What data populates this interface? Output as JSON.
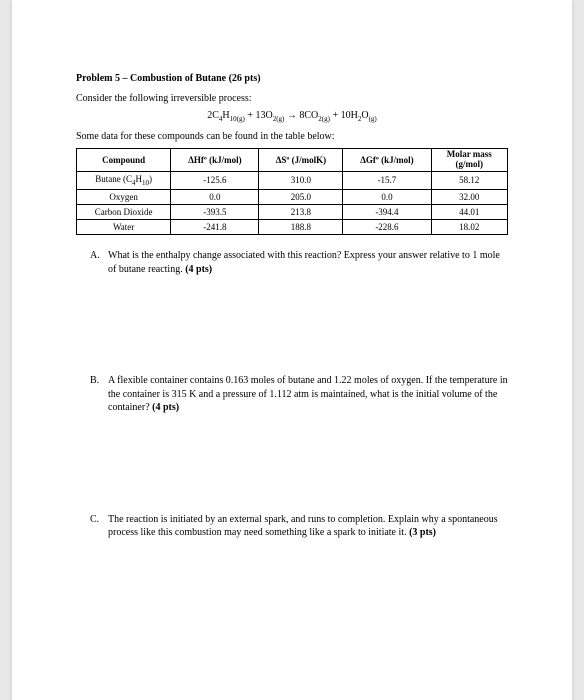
{
  "title": "Problem 5 – Combustion of Butane (26 pts)",
  "intro": "Consider the following irreversible process:",
  "equation_html": "2C₄H₁₀(g) + 13O₂(g) → 8CO₂(g) + 10H₂O(g)",
  "table_caption": "Some data for these compounds can be found in the table below:",
  "headers": {
    "compound": "Compound",
    "hf": "ΔHfº (kJ/mol)",
    "s": "ΔSº (J/molK)",
    "gf": "ΔGfº (kJ/mol)",
    "mm1": "Molar mass",
    "mm2": "(g/mol)"
  },
  "rows": [
    {
      "compound": "Butane (C₄H₁₀)",
      "hf": "-125.6",
      "s": "310.0",
      "gf": "-15.7",
      "mm": "58.12"
    },
    {
      "compound": "Oxygen",
      "hf": "0.0",
      "s": "205.0",
      "gf": "0.0",
      "mm": "32.00"
    },
    {
      "compound": "Carbon Dioxide",
      "hf": "-393.5",
      "s": "213.8",
      "gf": "-394.4",
      "mm": "44.01"
    },
    {
      "compound": "Water",
      "hf": "-241.8",
      "s": "188.8",
      "gf": "-228.6",
      "mm": "18.02"
    }
  ],
  "qA": {
    "letter": "A.",
    "text": "What is the enthalpy change associated with this reaction? Express your answer relative to 1 mole of butane reacting. ",
    "pts": "(4 pts)"
  },
  "qB": {
    "letter": "B.",
    "text": "A flexible container contains 0.163 moles of butane and 1.22 moles of oxygen. If the temperature in the container is 315 K and a pressure of 1.112 atm is maintained, what is the initial volume of the container? ",
    "pts": "(4 pts)"
  },
  "qC": {
    "letter": "C.",
    "text": "The reaction is initiated by an external spark, and runs to completion. Explain why a spontaneous process like this combustion may need something like a spark to initiate it. ",
    "pts": "(3 pts)"
  }
}
